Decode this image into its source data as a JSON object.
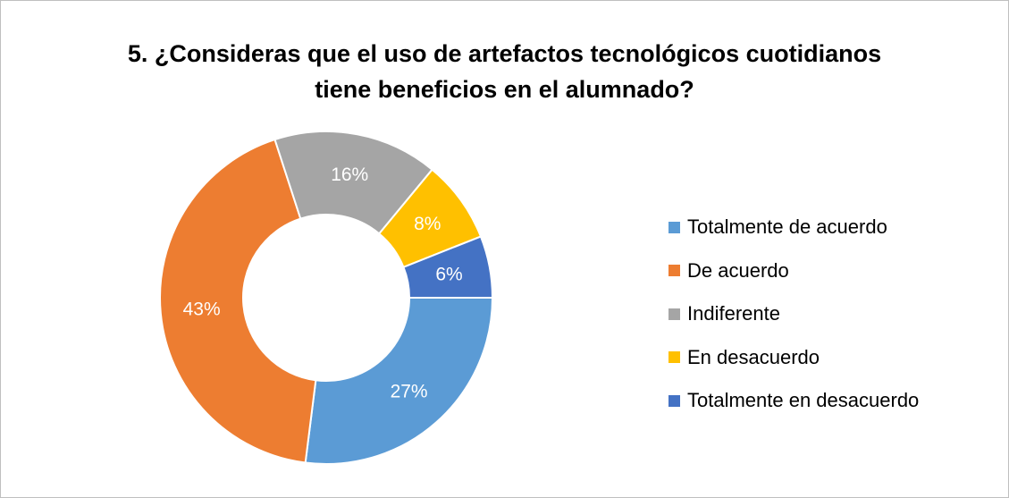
{
  "chart_data": {
    "type": "pie",
    "donut": true,
    "title": [
      "5. ¿Consideras que el uso de artefactos tecnológicos cuotidianos",
      "tiene beneficios en el alumnado?"
    ],
    "legend_position": "right",
    "series": [
      {
        "name": "Totalmente de acuerdo",
        "value": 27,
        "label": "27%",
        "color": "#5b9bd5"
      },
      {
        "name": "De acuerdo",
        "value": 43,
        "label": "43%",
        "color": "#ed7d31"
      },
      {
        "name": "Indiferente",
        "value": 16,
        "label": "16%",
        "color": "#a5a5a5"
      },
      {
        "name": "En desacuerdo",
        "value": 8,
        "label": "8%",
        "color": "#ffc000"
      },
      {
        "name": "Totalmente en desacuerdo",
        "value": 6,
        "label": "6%",
        "color": "#4472c4"
      }
    ]
  }
}
